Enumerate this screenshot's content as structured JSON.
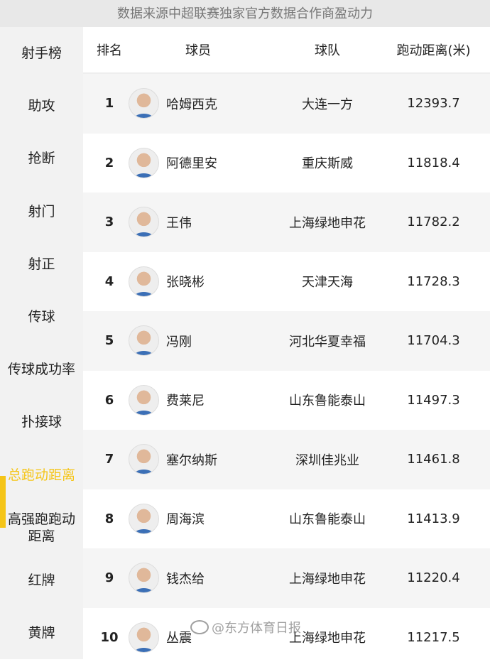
{
  "banner": "数据来源中超联赛独家官方数据合作商盈动力",
  "sidebar": {
    "active_color": "#f5c518",
    "items": [
      {
        "label": "射手榜"
      },
      {
        "label": "助攻"
      },
      {
        "label": "抢断"
      },
      {
        "label": "射门"
      },
      {
        "label": "射正"
      },
      {
        "label": "传球"
      },
      {
        "label": "传球成功率"
      },
      {
        "label": "扑接球"
      },
      {
        "label": "总跑动距离",
        "active": true
      },
      {
        "label": "高强跑跑动距离"
      },
      {
        "label": "红牌"
      },
      {
        "label": "黄牌"
      }
    ]
  },
  "table": {
    "headers": {
      "rank": "排名",
      "player": "球员",
      "team": "球队",
      "distance": "跑动距离(米)"
    },
    "rows": [
      {
        "rank": "1",
        "player": "哈姆西克",
        "team": "大连一方",
        "distance": "12393.7"
      },
      {
        "rank": "2",
        "player": "阿德里安",
        "team": "重庆斯威",
        "distance": "11818.4"
      },
      {
        "rank": "3",
        "player": "王伟",
        "team": "上海绿地申花",
        "distance": "11782.2"
      },
      {
        "rank": "4",
        "player": "张晓彬",
        "team": "天津天海",
        "distance": "11728.3"
      },
      {
        "rank": "5",
        "player": "冯刚",
        "team": "河北华夏幸福",
        "distance": "11704.3"
      },
      {
        "rank": "6",
        "player": "费莱尼",
        "team": "山东鲁能泰山",
        "distance": "11497.3"
      },
      {
        "rank": "7",
        "player": "塞尔纳斯",
        "team": "深圳佳兆业",
        "distance": "11461.8"
      },
      {
        "rank": "8",
        "player": "周海滨",
        "team": "山东鲁能泰山",
        "distance": "11413.9"
      },
      {
        "rank": "9",
        "player": "钱杰给",
        "team": "上海绿地申花",
        "distance": "11220.4"
      },
      {
        "rank": "10",
        "player": "丛震",
        "team": "上海绿地申花",
        "distance": "11217.5"
      }
    ]
  },
  "watermark": "@东方体育日报"
}
